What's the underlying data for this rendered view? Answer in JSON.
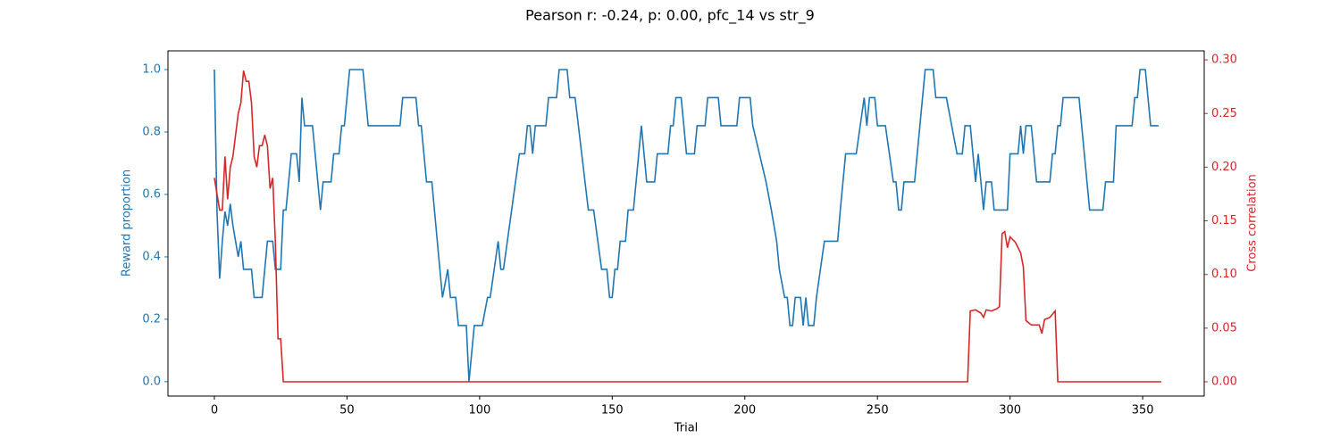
{
  "chart_data": {
    "type": "line",
    "title": "Pearson r: -0.24, p: 0.00, pfc_14 vs str_9",
    "xlabel": "Trial",
    "ylabel": "Reward proportion",
    "y2label": "Cross correlation",
    "xlim": [
      -17.5,
      373.2
    ],
    "ylim": [
      -0.046,
      1.06
    ],
    "y2lim": [
      -0.0133,
      0.3084
    ],
    "xticks": [
      0,
      50,
      100,
      150,
      200,
      250,
      300,
      350
    ],
    "yticks": [
      {
        "value": 0,
        "label": "0.0"
      },
      {
        "value": 0.2,
        "label": "0.2"
      },
      {
        "value": 0.4,
        "label": "0.4"
      },
      {
        "value": 0.6,
        "label": "0.6"
      },
      {
        "value": 0.8,
        "label": "0.8"
      },
      {
        "value": 1,
        "label": "1.0"
      }
    ],
    "y2ticks": [
      {
        "value": 0,
        "label": "0.00"
      },
      {
        "value": 0.05,
        "label": "0.05"
      },
      {
        "value": 0.1,
        "label": "0.10"
      },
      {
        "value": 0.15,
        "label": "0.15"
      },
      {
        "value": 0.2,
        "label": "0.20"
      },
      {
        "value": 0.25,
        "label": "0.25"
      },
      {
        "value": 0.3,
        "label": "0.30"
      }
    ],
    "ycolor": "#1f77b4",
    "y2color": "#d62728",
    "series": [
      {
        "color": "#1f77b4",
        "axis": "y",
        "x": [
          0,
          1,
          2,
          3,
          4,
          5,
          6,
          7,
          8,
          9,
          10,
          11,
          14,
          15,
          18,
          19,
          20,
          22,
          23,
          25,
          26,
          27,
          29,
          31,
          32,
          33,
          34,
          37,
          39,
          40,
          41,
          44,
          45,
          47,
          48,
          49,
          51,
          56,
          58,
          70,
          71,
          76,
          77,
          78,
          80,
          82,
          86,
          88,
          89,
          91,
          92,
          95,
          96,
          98,
          101,
          103,
          104,
          107,
          108,
          109,
          115,
          117,
          118,
          119,
          120,
          121,
          125,
          126,
          129,
          130,
          133,
          134,
          136,
          141,
          143,
          146,
          148,
          149,
          150,
          151,
          152,
          153,
          155,
          156,
          158,
          161,
          162,
          163,
          166,
          167,
          171,
          172,
          173,
          174,
          176,
          177,
          178,
          181,
          182,
          185,
          186,
          190,
          191,
          197,
          198,
          202,
          203,
          208,
          210,
          212,
          213,
          215,
          216,
          217,
          218,
          219,
          221,
          222,
          223,
          224,
          226,
          227,
          230,
          235,
          236,
          238,
          242,
          245,
          246,
          247,
          249,
          250,
          253,
          256,
          257,
          258,
          259,
          260,
          264,
          267,
          268,
          271,
          272,
          276,
          278,
          280,
          282,
          283,
          285,
          287,
          288,
          290,
          291,
          293,
          294,
          299,
          300,
          303,
          304,
          305,
          306,
          308,
          310,
          315,
          316,
          317,
          318,
          319,
          320,
          326,
          328,
          329,
          330,
          335,
          336,
          339,
          340,
          346,
          347,
          348,
          349,
          351,
          353,
          356
        ],
        "values": [
          1.0,
          0.545,
          0.33,
          0.45,
          0.545,
          0.5,
          0.57,
          0.5,
          0.45,
          0.4,
          0.45,
          0.36,
          0.36,
          0.27,
          0.27,
          0.36,
          0.45,
          0.45,
          0.36,
          0.36,
          0.55,
          0.55,
          0.73,
          0.73,
          0.64,
          0.91,
          0.82,
          0.82,
          0.64,
          0.55,
          0.64,
          0.64,
          0.73,
          0.73,
          0.82,
          0.82,
          1.0,
          1.0,
          0.82,
          0.82,
          0.91,
          0.91,
          0.82,
          0.82,
          0.64,
          0.64,
          0.27,
          0.36,
          0.27,
          0.27,
          0.18,
          0.18,
          0.0,
          0.18,
          0.18,
          0.27,
          0.27,
          0.45,
          0.36,
          0.36,
          0.73,
          0.73,
          0.82,
          0.82,
          0.73,
          0.82,
          0.82,
          0.91,
          0.91,
          1.0,
          1.0,
          0.91,
          0.91,
          0.55,
          0.55,
          0.36,
          0.36,
          0.27,
          0.27,
          0.36,
          0.36,
          0.45,
          0.45,
          0.55,
          0.55,
          0.82,
          0.73,
          0.64,
          0.64,
          0.73,
          0.73,
          0.82,
          0.82,
          0.91,
          0.91,
          0.82,
          0.73,
          0.73,
          0.82,
          0.82,
          0.91,
          0.91,
          0.82,
          0.82,
          0.91,
          0.91,
          0.82,
          0.64,
          0.55,
          0.45,
          0.36,
          0.27,
          0.27,
          0.18,
          0.18,
          0.27,
          0.27,
          0.18,
          0.27,
          0.18,
          0.18,
          0.27,
          0.45,
          0.45,
          0.55,
          0.73,
          0.73,
          0.91,
          0.82,
          0.91,
          0.91,
          0.82,
          0.82,
          0.64,
          0.64,
          0.55,
          0.55,
          0.64,
          0.64,
          0.91,
          1.0,
          1.0,
          0.91,
          0.91,
          0.82,
          0.73,
          0.73,
          0.82,
          0.82,
          0.64,
          0.73,
          0.55,
          0.64,
          0.64,
          0.55,
          0.55,
          0.73,
          0.73,
          0.82,
          0.73,
          0.82,
          0.82,
          0.64,
          0.64,
          0.73,
          0.73,
          0.82,
          0.82,
          0.91,
          0.91,
          0.73,
          0.64,
          0.55,
          0.55,
          0.64,
          0.64,
          0.82,
          0.82,
          0.91,
          0.91,
          1.0,
          1.0,
          0.82,
          0.82
        ]
      },
      {
        "color": "#d62728",
        "axis": "y2",
        "x": [
          0,
          2,
          3,
          4,
          5,
          6,
          7,
          9,
          10,
          11,
          12,
          13,
          14,
          15,
          16,
          17,
          18,
          19,
          20,
          21,
          22,
          23,
          24,
          25,
          26,
          284,
          285,
          287,
          289,
          290,
          291,
          293,
          294,
          295,
          296,
          297,
          298,
          299,
          300,
          302,
          304,
          305,
          306,
          308,
          311,
          312,
          313,
          315,
          317,
          318,
          357
        ],
        "values": [
          0.19,
          0.16,
          0.16,
          0.21,
          0.17,
          0.2,
          0.21,
          0.25,
          0.26,
          0.29,
          0.28,
          0.28,
          0.26,
          0.21,
          0.2,
          0.22,
          0.22,
          0.23,
          0.22,
          0.18,
          0.19,
          0.13,
          0.04,
          0.04,
          0.0,
          0.0,
          0.066,
          0.067,
          0.064,
          0.06,
          0.067,
          0.066,
          0.067,
          0.068,
          0.07,
          0.138,
          0.14,
          0.125,
          0.135,
          0.13,
          0.12,
          0.107,
          0.057,
          0.053,
          0.053,
          0.045,
          0.058,
          0.06,
          0.066,
          0.0,
          0.0
        ]
      }
    ]
  }
}
